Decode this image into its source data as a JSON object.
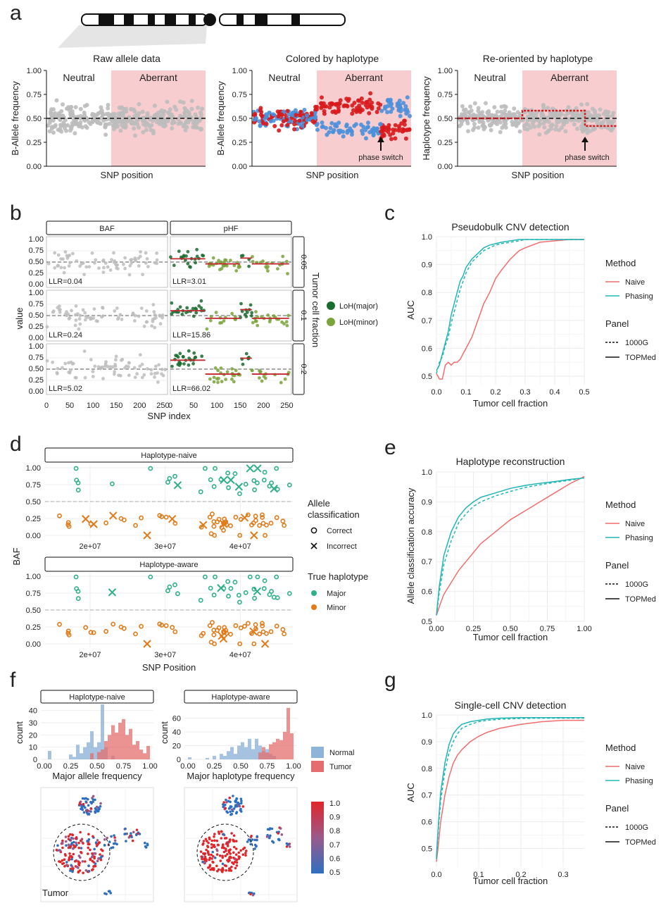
{
  "panel_labels": [
    "a",
    "b",
    "c",
    "d",
    "e",
    "f",
    "g"
  ],
  "colors": {
    "grey": "#bdbdbd",
    "red": "#d7191c",
    "blue": "#4a90d9",
    "aberrant": "#f7cdd0",
    "naive": "#f26d6d",
    "phasing": "#22b5b5",
    "loh_major": "#1a6b2e",
    "loh_minor": "#7aa33a",
    "major": "#2fb08a",
    "minor": "#e07b1a",
    "normal": "#8fb4d9",
    "tumor": "#e46d6d"
  },
  "chart_data": [
    {
      "id": "a1",
      "type": "scatter",
      "title": "Raw allele data",
      "xlabel": "SNP position",
      "ylabel": "B-Allele frequency",
      "ylim": [
        0,
        1
      ],
      "yticks": [
        "0.00",
        "0.25",
        "0.50",
        "0.75",
        "1.00"
      ],
      "regions": [
        "Neutral",
        "Aberrant"
      ],
      "hline": 0.5
    },
    {
      "id": "a2",
      "type": "scatter",
      "title": "Colored by haplotype",
      "xlabel": "SNP position",
      "ylabel": "B-Allele frequency",
      "ylim": [
        0,
        1
      ],
      "yticks": [
        "0.00",
        "0.25",
        "0.50",
        "0.75",
        "1.00"
      ],
      "regions": [
        "Neutral",
        "Aberrant"
      ],
      "annotation": "phase switch"
    },
    {
      "id": "a3",
      "type": "scatter",
      "title": "Re-oriented by haplotype",
      "xlabel": "SNP position",
      "ylabel": "Haplotype frequency",
      "ylim": [
        0,
        1
      ],
      "yticks": [
        "0.00",
        "0.25",
        "0.50",
        "0.75",
        "1.00"
      ],
      "regions": [
        "Neutral",
        "Aberrant"
      ],
      "annotation": "phase switch",
      "segments": [
        0.5,
        0.58,
        0.42
      ]
    },
    {
      "id": "b",
      "type": "scatter",
      "xlabel": "SNP index",
      "ylabel": "value",
      "columns": [
        "BAF",
        "pHF"
      ],
      "facet_label": "Tumor cell fraction",
      "rows": [
        "0.05",
        "0.1",
        "0.2"
      ],
      "llr_baf": [
        "LLR=0.04",
        "LLR=0.24",
        "LLR=5.02"
      ],
      "llr_phf": [
        "LLR=3.01",
        "LLR=15.86",
        "LLR=66.02"
      ],
      "yticks": [
        "0.00",
        "0.25",
        "0.50",
        "0.75",
        "1.00"
      ],
      "xticks": [
        "0",
        "50",
        "100",
        "150",
        "200",
        "250"
      ],
      "legend": [
        "LoH(major)",
        "LoH(minor)"
      ]
    },
    {
      "id": "c",
      "type": "line",
      "title": "Pseudobulk CNV detection",
      "xlabel": "Tumor cell fraction",
      "ylabel": "AUC",
      "xlim": [
        0,
        0.5
      ],
      "ylim": [
        0.47,
        1.0
      ],
      "xticks": [
        "0.0",
        "0.1",
        "0.2",
        "0.3",
        "0.4",
        "0.5"
      ],
      "yticks": [
        "0.5",
        "0.6",
        "0.7",
        "0.8",
        "0.9",
        "1.0"
      ],
      "x": [
        0,
        0.01,
        0.02,
        0.03,
        0.04,
        0.05,
        0.06,
        0.07,
        0.08,
        0.09,
        0.1,
        0.12,
        0.14,
        0.16,
        0.18,
        0.2,
        0.22,
        0.25,
        0.28,
        0.3,
        0.35,
        0.4,
        0.45,
        0.5
      ],
      "series": [
        {
          "name": "Naive",
          "panel": "TOPMed",
          "values": [
            0.51,
            0.49,
            0.49,
            0.54,
            0.55,
            0.54,
            0.55,
            0.55,
            0.56,
            0.58,
            0.6,
            0.64,
            0.7,
            0.76,
            0.8,
            0.85,
            0.88,
            0.92,
            0.95,
            0.96,
            0.98,
            0.985,
            0.99,
            0.99
          ]
        },
        {
          "name": "Phasing",
          "panel": "TOPMed",
          "values": [
            0.52,
            0.54,
            0.58,
            0.62,
            0.66,
            0.72,
            0.76,
            0.8,
            0.84,
            0.86,
            0.89,
            0.92,
            0.94,
            0.96,
            0.97,
            0.975,
            0.98,
            0.985,
            0.99,
            0.99,
            0.99,
            0.99,
            0.99,
            0.99
          ]
        },
        {
          "name": "Phasing",
          "panel": "1000G",
          "values": [
            0.51,
            0.55,
            0.57,
            0.61,
            0.64,
            0.69,
            0.73,
            0.77,
            0.81,
            0.84,
            0.87,
            0.91,
            0.93,
            0.95,
            0.96,
            0.97,
            0.975,
            0.98,
            0.985,
            0.99,
            0.99,
            0.99,
            0.99,
            0.99
          ]
        }
      ],
      "legend": {
        "method_title": "Method",
        "methods": [
          "Naive",
          "Phasing"
        ],
        "panel_title": "Panel",
        "panels": [
          "1000G",
          "TOPMed"
        ]
      }
    },
    {
      "id": "d",
      "type": "scatter",
      "xlabel": "SNP Position",
      "ylabel": "BAF",
      "facets": [
        "Haplotype-naive",
        "Haplotype-aware"
      ],
      "xticks": [
        "2e+07",
        "3e+07",
        "4e+07"
      ],
      "yticks": [
        "0.00",
        "0.25",
        "0.50",
        "0.75",
        "1.00"
      ],
      "legend": {
        "allele_title": "Allele classification",
        "allele": [
          "Correct",
          "Incorrect"
        ],
        "hap_title": "True haplotype",
        "hap": [
          "Major",
          "Minor"
        ]
      }
    },
    {
      "id": "e",
      "type": "line",
      "title": "Haplotype reconstruction",
      "xlabel": "Tumor cell fraction",
      "ylabel": "Allele classification accuracy",
      "xlim": [
        0,
        1
      ],
      "ylim": [
        0.5,
        1.0
      ],
      "xticks": [
        "0.00",
        "0.25",
        "0.50",
        "0.75",
        "1.00"
      ],
      "yticks": [
        "0.5",
        "0.6",
        "0.7",
        "0.8",
        "0.9",
        "1.0"
      ],
      "x": [
        0,
        0.02,
        0.05,
        0.1,
        0.15,
        0.2,
        0.25,
        0.3,
        0.4,
        0.5,
        0.6,
        0.7,
        0.8,
        0.9,
        1.0
      ],
      "series": [
        {
          "name": "Naive",
          "panel": "TOPMed",
          "values": [
            0.52,
            0.55,
            0.59,
            0.63,
            0.67,
            0.7,
            0.73,
            0.76,
            0.8,
            0.84,
            0.87,
            0.9,
            0.93,
            0.96,
            0.985
          ]
        },
        {
          "name": "Phasing",
          "panel": "TOPMed",
          "values": [
            0.52,
            0.62,
            0.72,
            0.8,
            0.85,
            0.88,
            0.9,
            0.915,
            0.93,
            0.945,
            0.955,
            0.962,
            0.968,
            0.975,
            0.98
          ]
        },
        {
          "name": "Phasing",
          "panel": "1000G",
          "values": [
            0.52,
            0.6,
            0.69,
            0.77,
            0.83,
            0.86,
            0.885,
            0.9,
            0.92,
            0.935,
            0.948,
            0.957,
            0.965,
            0.972,
            0.98
          ]
        }
      ],
      "legend": {
        "method_title": "Method",
        "methods": [
          "Naive",
          "Phasing"
        ],
        "panel_title": "Panel",
        "panels": [
          "1000G",
          "TOPMed"
        ]
      }
    },
    {
      "id": "f",
      "type": "bar",
      "facets": [
        "Haplotype-naive",
        "Haplotype-aware"
      ],
      "xlabels": [
        "Major allele frequency",
        "Major haplotype frequency"
      ],
      "ylabel": "count",
      "xticks": [
        "0.00",
        "0.25",
        "0.50",
        "0.75",
        "1.00"
      ],
      "yticks_naive": [
        "0",
        "10",
        "20",
        "30",
        "40"
      ],
      "yticks_aware": [
        "0",
        "20",
        "40",
        "60"
      ],
      "naive_normal": [
        0,
        7,
        0,
        0,
        0,
        0,
        0,
        4,
        2,
        12,
        5,
        10,
        14,
        23,
        10,
        14,
        45,
        10,
        0,
        3,
        0,
        0,
        0,
        0,
        0,
        0,
        0,
        0,
        0,
        0
      ],
      "naive_tumor": [
        0,
        0,
        0,
        0,
        0,
        0,
        0,
        0,
        0,
        0,
        0,
        0,
        0,
        5,
        0,
        6,
        8,
        15,
        20,
        28,
        22,
        30,
        33,
        20,
        25,
        12,
        15,
        8,
        5,
        11
      ],
      "aware_normal": [
        3,
        0,
        0,
        0,
        0,
        2,
        0,
        5,
        0,
        8,
        5,
        12,
        18,
        8,
        20,
        25,
        18,
        30,
        15,
        30,
        20,
        12,
        15,
        8,
        5,
        0,
        0,
        0,
        0,
        0
      ],
      "aware_tumor": [
        0,
        0,
        0,
        0,
        0,
        0,
        0,
        0,
        0,
        0,
        0,
        0,
        0,
        0,
        0,
        0,
        0,
        0,
        0,
        0,
        10,
        18,
        10,
        22,
        25,
        30,
        28,
        40,
        75,
        38
      ],
      "legend": [
        "Normal",
        "Tumor"
      ],
      "colorbar_ticks": [
        "1.0",
        "0.9",
        "0.8",
        "0.7",
        "0.6",
        "0.5"
      ],
      "annotation": "Tumor"
    },
    {
      "id": "g",
      "type": "line",
      "title": "Single-cell CNV detection",
      "xlabel": "Tumor cell fraction",
      "ylabel": "AUC",
      "xlim": [
        0,
        0.35
      ],
      "ylim": [
        0.43,
        1.0
      ],
      "xticks": [
        "0.0",
        "0.1",
        "0.2",
        "0.3"
      ],
      "yticks": [
        "0.5",
        "0.6",
        "0.7",
        "0.8",
        "0.9",
        "1.0"
      ],
      "x": [
        0,
        0.005,
        0.01,
        0.02,
        0.03,
        0.04,
        0.05,
        0.06,
        0.08,
        0.1,
        0.12,
        0.15,
        0.2,
        0.25,
        0.3,
        0.35
      ],
      "series": [
        {
          "name": "Naive",
          "panel": "TOPMed",
          "values": [
            0.45,
            0.52,
            0.6,
            0.7,
            0.77,
            0.82,
            0.85,
            0.87,
            0.9,
            0.92,
            0.935,
            0.95,
            0.965,
            0.975,
            0.98,
            0.98
          ]
        },
        {
          "name": "Phasing",
          "panel": "TOPMed",
          "values": [
            0.47,
            0.6,
            0.71,
            0.82,
            0.89,
            0.93,
            0.95,
            0.965,
            0.975,
            0.98,
            0.985,
            0.988,
            0.99,
            0.99,
            0.99,
            0.99
          ]
        },
        {
          "name": "Phasing",
          "panel": "1000G",
          "values": [
            0.46,
            0.58,
            0.68,
            0.79,
            0.86,
            0.9,
            0.93,
            0.95,
            0.965,
            0.975,
            0.98,
            0.984,
            0.987,
            0.988,
            0.988,
            0.988
          ]
        }
      ],
      "legend": {
        "method_title": "Method",
        "methods": [
          "Naive",
          "Phasing"
        ],
        "panel_title": "Panel",
        "panels": [
          "1000G",
          "TOPMed"
        ]
      }
    }
  ]
}
